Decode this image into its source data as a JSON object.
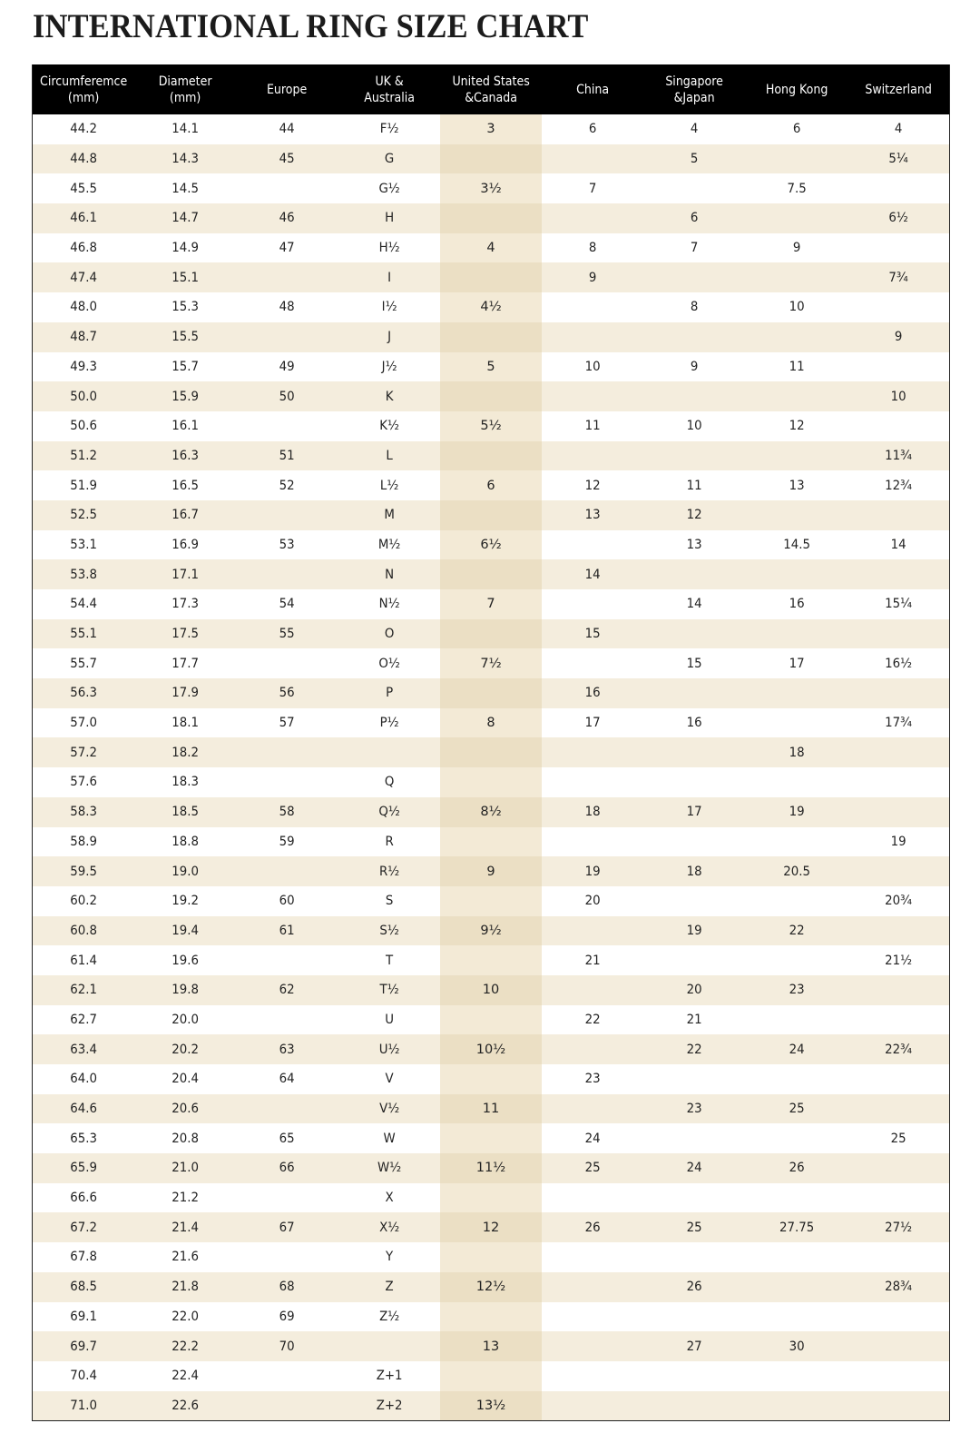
{
  "title": "INTERNATIONAL RING SIZE CHART",
  "colors": {
    "header_bg": "#000000",
    "stripe": "#f4eddd",
    "us_column": "#f3ead6"
  },
  "headers": [
    "Circumferemce\n(mm)",
    "Diameter\n(mm)",
    "Europe",
    "UK &\nAustralia",
    "United States\n&Canada",
    "China",
    "Singapore\n&Japan",
    "Hong Kong",
    "Switzerland"
  ],
  "rows": [
    [
      "44.2",
      "14.1",
      "44",
      "F½",
      "3",
      "6",
      "4",
      "6",
      "4"
    ],
    [
      "44.8",
      "14.3",
      "45",
      "G",
      "",
      "",
      "5",
      "",
      "5¼"
    ],
    [
      "45.5",
      "14.5",
      "",
      "G½",
      "3½",
      "7",
      "",
      "7.5",
      ""
    ],
    [
      "46.1",
      "14.7",
      "46",
      "H",
      "",
      "",
      "6",
      "",
      "6½"
    ],
    [
      "46.8",
      "14.9",
      "47",
      "H½",
      "4",
      "8",
      "7",
      "9",
      ""
    ],
    [
      "47.4",
      "15.1",
      "",
      "I",
      "",
      "9",
      "",
      "",
      "7¾"
    ],
    [
      "48.0",
      "15.3",
      "48",
      "I½",
      "4½",
      "",
      "8",
      "10",
      ""
    ],
    [
      "48.7",
      "15.5",
      "",
      "J",
      "",
      "",
      "",
      "",
      "9"
    ],
    [
      "49.3",
      "15.7",
      "49",
      "J½",
      "5",
      "10",
      "9",
      "11",
      ""
    ],
    [
      "50.0",
      "15.9",
      "50",
      "K",
      "",
      "",
      "",
      "",
      "10"
    ],
    [
      "50.6",
      "16.1",
      "",
      "K½",
      "5½",
      "11",
      "10",
      "12",
      ""
    ],
    [
      "51.2",
      "16.3",
      "51",
      "L",
      "",
      "",
      "",
      "",
      "11¾"
    ],
    [
      "51.9",
      "16.5",
      "52",
      "L½",
      "6",
      "12",
      "11",
      "13",
      "12¾"
    ],
    [
      "52.5",
      "16.7",
      "",
      "M",
      "",
      "13",
      "12",
      "",
      ""
    ],
    [
      "53.1",
      "16.9",
      "53",
      "M½",
      "6½",
      "",
      "13",
      "14.5",
      "14"
    ],
    [
      "53.8",
      "17.1",
      "",
      "N",
      "",
      "14",
      "",
      "",
      ""
    ],
    [
      "54.4",
      "17.3",
      "54",
      "N½",
      "7",
      "",
      "14",
      "16",
      "15¼"
    ],
    [
      "55.1",
      "17.5",
      "55",
      "O",
      "",
      "15",
      "",
      "",
      ""
    ],
    [
      "55.7",
      "17.7",
      "",
      "O½",
      "7½",
      "",
      "15",
      "17",
      "16½"
    ],
    [
      "56.3",
      "17.9",
      "56",
      "P",
      "",
      "16",
      "",
      "",
      ""
    ],
    [
      "57.0",
      "18.1",
      "57",
      "P½",
      "8",
      "17",
      "16",
      "",
      "17¾"
    ],
    [
      "57.2",
      "18.2",
      "",
      "",
      "",
      "",
      "",
      "18",
      ""
    ],
    [
      "57.6",
      "18.3",
      "",
      "Q",
      "",
      "",
      "",
      "",
      ""
    ],
    [
      "58.3",
      "18.5",
      "58",
      "Q½",
      "8½",
      "18",
      "17",
      "19",
      ""
    ],
    [
      "58.9",
      "18.8",
      "59",
      "R",
      "",
      "",
      "",
      "",
      "19"
    ],
    [
      "59.5",
      "19.0",
      "",
      "R½",
      "9",
      "19",
      "18",
      "20.5",
      ""
    ],
    [
      "60.2",
      "19.2",
      "60",
      "S",
      "",
      "20",
      "",
      "",
      "20¾"
    ],
    [
      "60.8",
      "19.4",
      "61",
      "S½",
      "9½",
      "",
      "19",
      "22",
      ""
    ],
    [
      "61.4",
      "19.6",
      "",
      "T",
      "",
      "21",
      "",
      "",
      "21½"
    ],
    [
      "62.1",
      "19.8",
      "62",
      "T½",
      "10",
      "",
      "20",
      "23",
      ""
    ],
    [
      "62.7",
      "20.0",
      "",
      "U",
      "",
      "22",
      "21",
      "",
      ""
    ],
    [
      "63.4",
      "20.2",
      "63",
      "U½",
      "10½",
      "",
      "22",
      "24",
      "22¾"
    ],
    [
      "64.0",
      "20.4",
      "64",
      "V",
      "",
      "23",
      "",
      "",
      ""
    ],
    [
      "64.6",
      "20.6",
      "",
      "V½",
      "11",
      "",
      "23",
      "25",
      ""
    ],
    [
      "65.3",
      "20.8",
      "65",
      "W",
      "",
      "24",
      "",
      "",
      "25"
    ],
    [
      "65.9",
      "21.0",
      "66",
      "W½",
      "11½",
      "25",
      "24",
      "26",
      ""
    ],
    [
      "66.6",
      "21.2",
      "",
      "X",
      "",
      "",
      "",
      "",
      ""
    ],
    [
      "67.2",
      "21.4",
      "67",
      "X½",
      "12",
      "26",
      "25",
      "27.75",
      "27½"
    ],
    [
      "67.8",
      "21.6",
      "",
      "Y",
      "",
      "",
      "",
      "",
      ""
    ],
    [
      "68.5",
      "21.8",
      "68",
      "Z",
      "12½",
      "",
      "26",
      "",
      "28¾"
    ],
    [
      "69.1",
      "22.0",
      "69",
      "Z½",
      "",
      "",
      "",
      "",
      ""
    ],
    [
      "69.7",
      "22.2",
      "70",
      "",
      "13",
      "",
      "27",
      "30",
      ""
    ],
    [
      "70.4",
      "22.4",
      "",
      "Z+1",
      "",
      "",
      "",
      "",
      ""
    ],
    [
      "71.0",
      "22.6",
      "",
      "Z+2",
      "13½",
      "",
      "",
      "",
      ""
    ]
  ]
}
